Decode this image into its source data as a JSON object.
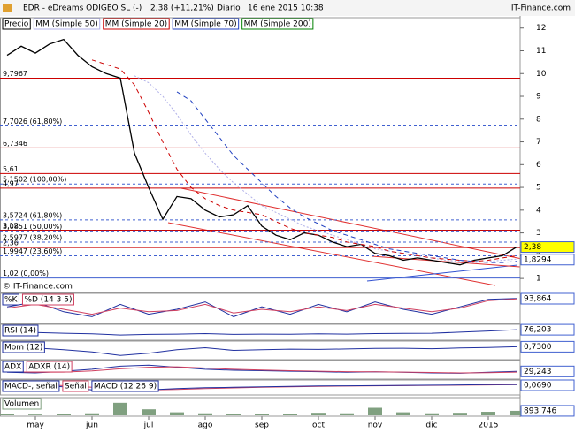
{
  "header": {
    "title": "EDR - eDreams ODIGEO SL (-)",
    "quote": "2,38 (+11,21%)",
    "period": "Diario",
    "date": "16 ene 2015 10:38",
    "brand": "IT-Finance.com"
  },
  "chart_data": [
    {
      "type": "line",
      "watermark": "© IT-Finance.com",
      "categories": [
        null,
        null,
        "may",
        null,
        null,
        null,
        "jun",
        null,
        null,
        null,
        "jul",
        null,
        null,
        null,
        "ago",
        null,
        null,
        null,
        "sep",
        null,
        null,
        null,
        "oct",
        null,
        null,
        null,
        "nov",
        null,
        null,
        null,
        "dic",
        null,
        null,
        null,
        "2015",
        null,
        null
      ],
      "series": [
        {
          "name": "Precio",
          "color": "#000000",
          "values": [
            10.8,
            11.2,
            10.9,
            11.3,
            11.5,
            10.8,
            10.3,
            10.0,
            9.8,
            6.5,
            5.0,
            3.6,
            4.6,
            4.5,
            4.0,
            3.7,
            3.8,
            4.2,
            3.3,
            2.9,
            2.7,
            3.0,
            2.9,
            2.6,
            2.4,
            2.5,
            2.1,
            2.0,
            1.8,
            1.9,
            1.8,
            1.7,
            1.6,
            1.8,
            1.9,
            2.0,
            2.38
          ]
        },
        {
          "name": "MM (Simple 50)",
          "color": "#b0b0e8",
          "dash": "2,2",
          "values": [
            null,
            null,
            null,
            null,
            null,
            null,
            null,
            null,
            null,
            9.9,
            9.6,
            9.0,
            8.2,
            7.3,
            6.5,
            5.8,
            5.2,
            4.7,
            4.2,
            3.9,
            3.6,
            3.3,
            3.1,
            2.9,
            2.7,
            2.5,
            2.3,
            2.2,
            2.1,
            2.0,
            1.9,
            1.8,
            1.75,
            1.7,
            1.75,
            1.8,
            1.85
          ]
        },
        {
          "name": "MM (Simple 20)",
          "color": "#cc0000",
          "dash": "5,4",
          "values": [
            null,
            null,
            null,
            null,
            null,
            null,
            10.6,
            10.4,
            10.2,
            9.5,
            8.3,
            7.0,
            5.8,
            5.0,
            4.5,
            4.2,
            4.0,
            3.9,
            3.8,
            3.5,
            3.2,
            3.0,
            2.9,
            2.8,
            2.6,
            2.5,
            2.4,
            2.2,
            2.1,
            2.0,
            1.9,
            1.85,
            1.8,
            1.75,
            1.8,
            1.9,
            2.0
          ]
        },
        {
          "name": "MM (Simple 70)",
          "color": "#2040c0",
          "dash": "5,4",
          "values": [
            null,
            null,
            null,
            null,
            null,
            null,
            null,
            null,
            null,
            null,
            null,
            null,
            9.2,
            8.8,
            8.0,
            7.2,
            6.4,
            5.8,
            5.2,
            4.6,
            4.1,
            3.7,
            3.4,
            3.1,
            2.9,
            2.7,
            2.5,
            2.3,
            2.2,
            2.1,
            2.0,
            1.9,
            1.8,
            1.75,
            1.7,
            1.7,
            1.75
          ]
        },
        {
          "name": "MM (Simple 200)",
          "color": "#008000",
          "dash": "5,4",
          "values": [
            null,
            null,
            null,
            null,
            null,
            null,
            null,
            null,
            null,
            null,
            null,
            null,
            null,
            null,
            null,
            null,
            null,
            null,
            null,
            null,
            null,
            null,
            null,
            null,
            null,
            null,
            null,
            null,
            null,
            null,
            null,
            null,
            null,
            null,
            null,
            null,
            null
          ]
        }
      ],
      "levels": [
        {
          "value": 9.7967,
          "label": "9,7967",
          "color": "#cc0000"
        },
        {
          "value": 7.7026,
          "label": "7,7026 (61,80%)",
          "color": "#4060d0",
          "dash": "3,3"
        },
        {
          "value": 6.7346,
          "label": "6,7346",
          "color": "#cc0000"
        },
        {
          "value": 5.61,
          "label": "5,61",
          "color": "#cc0000"
        },
        {
          "value": 5.1502,
          "label": "5,1502 (100,00%)",
          "color": "#4060d0",
          "dash": "3,3"
        },
        {
          "value": 4.97,
          "label": "4,97",
          "color": "#cc0000"
        },
        {
          "value": 3.5724,
          "label": "3,5724 (61,80%)",
          "color": "#4060d0",
          "dash": "3,3"
        },
        {
          "value": 3.12,
          "label": "3,12",
          "color": "#cc0000"
        },
        {
          "value": 3.0851,
          "label": "3,0851 (50,00%)",
          "color": "#4060d0",
          "dash": "3,3"
        },
        {
          "value": 2.5977,
          "label": "2,5977 (38,20%)",
          "color": "#4060d0",
          "dash": "3,3"
        },
        {
          "value": 2.36,
          "label": "2,36",
          "color": "#cc0000"
        },
        {
          "value": 1.9947,
          "label": "1,9947 (23,60%)",
          "color": "#4060d0",
          "dash": "3,3"
        },
        {
          "value": 1.02,
          "label": "1,02 (0,00%)",
          "color": "#4060d0"
        }
      ],
      "markers": [
        {
          "value": 2.38,
          "label": "2,38",
          "color": "#ffff00"
        },
        {
          "value": 1.8294,
          "label": "1,8294",
          "color": "#ffffff"
        }
      ],
      "ylim": [
        0.5,
        12.3
      ],
      "yticks": [
        1,
        2,
        3,
        4,
        5,
        6,
        7,
        8,
        9,
        10,
        11,
        12
      ]
    },
    {
      "type": "line",
      "series": [
        {
          "name": "%K",
          "color": "#2030a0",
          "values": [
            60,
            80,
            40,
            20,
            70,
            30,
            50,
            80,
            20,
            60,
            30,
            70,
            40,
            80,
            50,
            30,
            60,
            90,
            93.864
          ]
        },
        {
          "name": "%D (14 3 5)",
          "color": "#d04060",
          "values": [
            55,
            70,
            50,
            30,
            55,
            40,
            45,
            70,
            35,
            50,
            40,
            60,
            45,
            70,
            55,
            40,
            55,
            85,
            92
          ]
        }
      ],
      "ylim": [
        0,
        100
      ],
      "last": {
        "value": 93.864,
        "label": "93,864"
      }
    },
    {
      "type": "line",
      "series": [
        {
          "name": "RSI (14)",
          "color": "#2030a0",
          "values": [
            55,
            52,
            45,
            40,
            30,
            35,
            38,
            42,
            35,
            38,
            36,
            40,
            38,
            42,
            44,
            45,
            55,
            65,
            76.203
          ]
        }
      ],
      "ylim": [
        0,
        100
      ],
      "last": {
        "value": 76.203,
        "label": "76,203"
      }
    },
    {
      "type": "line",
      "series": [
        {
          "name": "Mom (12)",
          "color": "#2030a0",
          "values": [
            0.5,
            0.2,
            -0.5,
            -1.5,
            -3,
            -2,
            -0.5,
            0.3,
            -0.8,
            -0.5,
            -0.3,
            -0.4,
            -0.2,
            0,
            0.1,
            -0.1,
            0.2,
            0.4,
            0.73
          ]
        }
      ],
      "ylim": [
        -4,
        2
      ],
      "last": {
        "value": 0.73,
        "label": "0,7300"
      }
    },
    {
      "type": "line",
      "series": [
        {
          "name": "ADX",
          "color": "#2030a0",
          "values": [
            25,
            22,
            30,
            40,
            55,
            60,
            50,
            40,
            35,
            33,
            30,
            28,
            25,
            27,
            25,
            22,
            20,
            25,
            29.243
          ]
        },
        {
          "name": "ADXR (14)",
          "color": "#d04060",
          "values": [
            28,
            25,
            26,
            32,
            42,
            50,
            52,
            46,
            40,
            36,
            33,
            30,
            28,
            27,
            26,
            24,
            22,
            23,
            26
          ]
        }
      ],
      "ylim": [
        0,
        70
      ],
      "last": {
        "value": 29.243,
        "label": "29,243"
      }
    },
    {
      "type": "line",
      "label": "MACD-, señal",
      "series": [
        {
          "name": "Señal",
          "color": "#d04060",
          "values": [
            0.05,
            0,
            -0.2,
            -0.6,
            -1.0,
            -1.2,
            -1.1,
            -0.9,
            -0.75,
            -0.6,
            -0.5,
            -0.4,
            -0.32,
            -0.26,
            -0.2,
            -0.15,
            -0.1,
            -0.04,
            0.02
          ]
        },
        {
          "name": "MACD (12 26 9)",
          "color": "#2030a0",
          "values": [
            0,
            -0.1,
            -0.5,
            -1.2,
            -1.5,
            -1.2,
            -0.9,
            -0.7,
            -0.6,
            -0.5,
            -0.4,
            -0.3,
            -0.25,
            -0.2,
            -0.15,
            -0.1,
            -0.05,
            0.02,
            0.069
          ]
        }
      ],
      "ylim": [
        -2,
        0.5
      ],
      "last": {
        "value": 0.069,
        "label": "0,0690"
      }
    },
    {
      "type": "bar",
      "series": [
        {
          "name": "Volumen",
          "color": "#80a080",
          "values": [
            200000,
            150000,
            300000,
            400000,
            2500000,
            1200000,
            600000,
            400000,
            300000,
            350000,
            300000,
            500000,
            400000,
            1500000,
            600000,
            400000,
            500000,
            700000,
            893746
          ]
        }
      ],
      "ylim": [
        0,
        3000000
      ],
      "last": {
        "value": 893746,
        "label": "893.746"
      }
    }
  ]
}
